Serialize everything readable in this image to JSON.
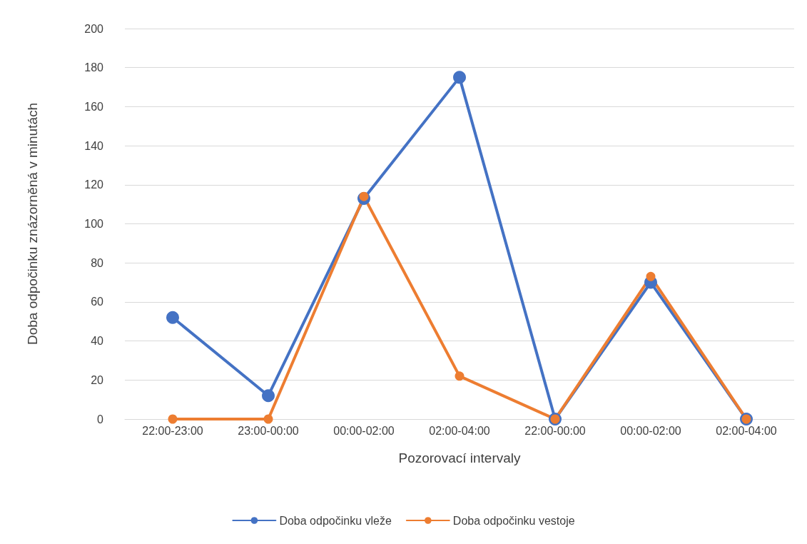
{
  "chart_data": {
    "type": "line",
    "xlabel": "Pozorovací intervaly",
    "ylabel": "Doba odpočinku znázorněná v minutách",
    "categories": [
      "22:00-23:00",
      "23:00-00:00",
      "00:00-02:00",
      "02:00-04:00",
      "22:00-00:00",
      "00:00-02:00",
      "02:00-04:00"
    ],
    "series": [
      {
        "name": "Doba odpočinku vleže",
        "color": "#4472c4",
        "values": [
          52,
          12,
          113,
          175,
          0,
          70,
          0
        ]
      },
      {
        "name": "Doba odpočinku vestoje",
        "color": "#ed7d31",
        "values": [
          0,
          0,
          114,
          22,
          0,
          73,
          0
        ]
      }
    ],
    "ylim": [
      0,
      200
    ],
    "yticks": [
      0,
      20,
      40,
      60,
      80,
      100,
      120,
      140,
      160,
      180,
      200
    ],
    "grid": "y",
    "legend": "bottom",
    "marker": "circle",
    "line_style": "solid"
  }
}
